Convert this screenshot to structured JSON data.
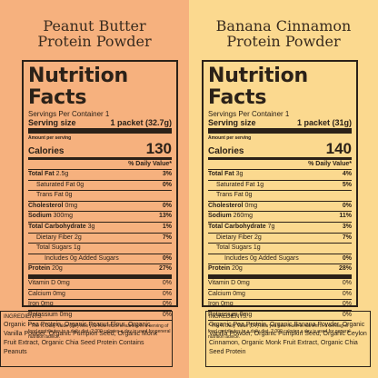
{
  "panels": [
    {
      "title_line1": "Peanut Butter",
      "title_line2": "Protein Powder",
      "nf_title": "Nutrition Facts",
      "servings": "Servings Per Container 1",
      "serving_size_label": "Serving size",
      "serving_size_value": "1 packet (32.7g)",
      "amount_per_serving": "Amount per serving",
      "calories_label": "Calories",
      "calories_value": "130",
      "dv_header": "% Daily Value*",
      "rows": [
        {
          "label": "Total Fat",
          "value": "2.5g",
          "pct": "3%"
        },
        {
          "label": "Saturated Fat",
          "value": "0g",
          "pct": "0%"
        },
        {
          "label": "Trans Fat",
          "value": "0g",
          "pct": ""
        },
        {
          "label": "Cholesterol",
          "value": "0mg",
          "pct": "0%"
        },
        {
          "label": "Sodium",
          "value": "300mg",
          "pct": "13%"
        },
        {
          "label": "Total Carbohydrate",
          "value": "3g",
          "pct": "1%"
        },
        {
          "label": "Dietary Fiber",
          "value": "2g",
          "pct": "7%"
        },
        {
          "label": "Total Sugars",
          "value": "1g",
          "pct": ""
        },
        {
          "label": "Includes 0g Added Sugars",
          "value": "",
          "pct": "0%"
        },
        {
          "label": "Protein",
          "value": "20g",
          "pct": "27%"
        }
      ],
      "vitamins": [
        {
          "label": "Vitamin D 0mg",
          "pct": "0%"
        },
        {
          "label": "Calcium 0mg",
          "pct": "0%"
        },
        {
          "label": "Iron 0mg",
          "pct": "0%"
        },
        {
          "label": "Potassium 0mg",
          "pct": "0%"
        }
      ],
      "footnote": "* The % Daily Value (DV) tells you how much a nutrient in a serving of food contributes to a daily diet. 2,000 calories a day is used for general nutrition advice.",
      "ingredients_title": "INGREDIENTS:",
      "ingredients_text": "Organic Pea Protein, Organic Peanut Flour, Organic Vanilla Powder, Organic Pumpkin Seed, Organic Monk Fruit Extract, Organic Chia Seed Protein Contains Peanuts"
    },
    {
      "title_line1": "Banana Cinnamon",
      "title_line2": "Protein Powder",
      "nf_title": "Nutrition Facts",
      "servings": "Servings Per Container 1",
      "serving_size_label": "Serving size",
      "serving_size_value": "1 packet (31g)",
      "amount_per_serving": "Amount per serving",
      "calories_label": "Calories",
      "calories_value": "140",
      "dv_header": "% Daily Value*",
      "rows": [
        {
          "label": "Total Fat",
          "value": "3g",
          "pct": "4%"
        },
        {
          "label": "Saturated Fat",
          "value": "1g",
          "pct": "5%"
        },
        {
          "label": "Trans Fat",
          "value": "0g",
          "pct": ""
        },
        {
          "label": "Cholesterol",
          "value": "0mg",
          "pct": "0%"
        },
        {
          "label": "Sodium",
          "value": "260mg",
          "pct": "11%"
        },
        {
          "label": "Total Carbohydrate",
          "value": "7g",
          "pct": "3%"
        },
        {
          "label": "Dietary Fiber",
          "value": "2g",
          "pct": "7%"
        },
        {
          "label": "Total Sugars",
          "value": "1g",
          "pct": ""
        },
        {
          "label": "Includes 0g Added Sugars",
          "value": "",
          "pct": "0%"
        },
        {
          "label": "Protein",
          "value": "20g",
          "pct": "28%"
        }
      ],
      "vitamins": [
        {
          "label": "Vitamin D 0mg",
          "pct": "0%"
        },
        {
          "label": "Calcium 0mg",
          "pct": "0%"
        },
        {
          "label": "Iron 0mg",
          "pct": "0%"
        },
        {
          "label": "Potassium 0mg",
          "pct": "0%"
        }
      ],
      "footnote": "* The % Daily Value (DV) tells you how much a nutrient in a serving of food contributes to a daily diet. 2,000 calories a day is used for general nutrition advice.",
      "ingredients_title": "INGREDIENTS:",
      "ingredients_text": "Organic Pea Protein, Organic Banana Powder, Organic Vanilla Powder, Organic Pumpkin Seed, Organic Ceylon Cinnamon, Organic Monk Fruit Extract, Organic Chia Seed Protein"
    }
  ],
  "colors": {
    "left_bg": "#f6b17e",
    "right_bg": "#fbd98f",
    "ink": "#2b2118"
  }
}
